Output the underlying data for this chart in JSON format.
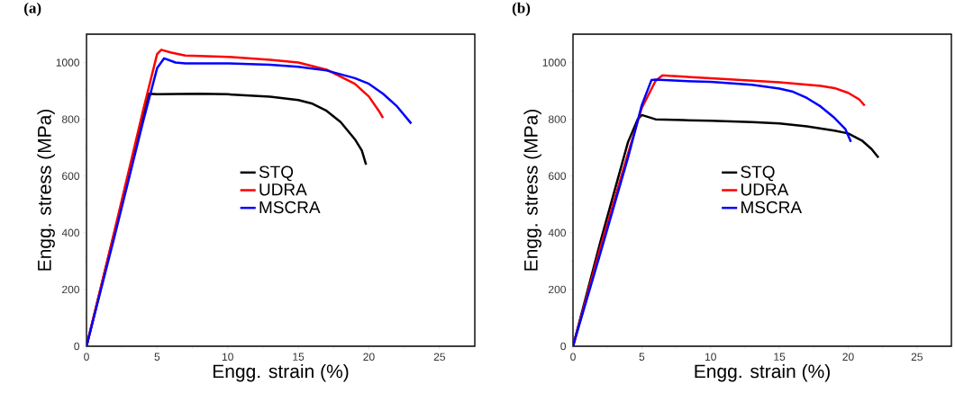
{
  "chart_data": [
    {
      "type": "line",
      "title": "(a)",
      "xlabel": "Engg. strain (%)",
      "ylabel": "Engg. stress (MPa)",
      "xlim": [
        0,
        27.5
      ],
      "ylim": [
        0,
        1100
      ],
      "xticks": [
        0,
        5,
        10,
        15,
        20,
        25
      ],
      "yticks": [
        0,
        200,
        400,
        600,
        800,
        1000
      ],
      "legend": "center",
      "series": [
        {
          "name": "STQ",
          "color": "#000000",
          "x": [
            0,
            2,
            4,
            4.4,
            5,
            8,
            10,
            13,
            15,
            16,
            17,
            18,
            19,
            19.5,
            19.8
          ],
          "values": [
            0,
            null,
            810,
            890,
            888,
            890,
            888,
            880,
            868,
            855,
            830,
            790,
            730,
            690,
            640
          ]
        },
        {
          "name": "UDRA",
          "color": "#ff0000",
          "x": [
            0,
            2,
            4,
            5,
            5.3,
            6,
            7,
            10,
            13,
            15,
            17,
            19,
            20,
            20.7,
            21
          ],
          "values": [
            0,
            410,
            830,
            1030,
            1045,
            1035,
            1025,
            1020,
            1010,
            1000,
            975,
            925,
            880,
            830,
            805
          ]
        },
        {
          "name": "MSCRA",
          "color": "#0000ff",
          "x": [
            0,
            2,
            4,
            5,
            5.5,
            6.3,
            7,
            10,
            13,
            15,
            17,
            19,
            20,
            21,
            22,
            23
          ],
          "values": [
            0,
            390,
            790,
            980,
            1015,
            1000,
            997,
            997,
            992,
            985,
            972,
            945,
            925,
            890,
            845,
            785
          ]
        }
      ]
    },
    {
      "type": "line",
      "title": "(b)",
      "xlabel": "Engg. strain (%)",
      "ylabel": "Engg. stress (MPa)",
      "xlim": [
        0,
        27.5
      ],
      "ylim": [
        0,
        1100
      ],
      "xticks": [
        0,
        5,
        10,
        15,
        20,
        25
      ],
      "yticks": [
        0,
        200,
        400,
        600,
        800,
        1000
      ],
      "legend": "center",
      "series": [
        {
          "name": "STQ",
          "color": "#000000",
          "x": [
            0,
            2,
            4,
            4.7,
            5,
            6,
            8,
            10,
            13,
            15,
            17,
            19,
            20,
            21,
            21.7,
            22.2
          ],
          "values": [
            0,
            370,
            720,
            800,
            815,
            800,
            797,
            795,
            790,
            785,
            775,
            760,
            750,
            725,
            695,
            665
          ]
        },
        {
          "name": "UDRA",
          "color": "#ff0000",
          "x": [
            0,
            2,
            4,
            5,
            6,
            6.5,
            7,
            10,
            15,
            18,
            19,
            20,
            20.8,
            21.2
          ],
          "values": [
            0,
            350,
            680,
            840,
            935,
            955,
            953,
            945,
            930,
            918,
            910,
            893,
            870,
            848
          ]
        },
        {
          "name": "MSCRA",
          "color": "#0000ff",
          "x": [
            0,
            2,
            4,
            5,
            5.7,
            6,
            8,
            10,
            13,
            15,
            16,
            17,
            18,
            19,
            19.8,
            20.2
          ],
          "values": [
            0,
            330,
            665,
            850,
            938,
            940,
            935,
            932,
            922,
            908,
            897,
            875,
            845,
            805,
            765,
            720
          ]
        }
      ]
    }
  ]
}
